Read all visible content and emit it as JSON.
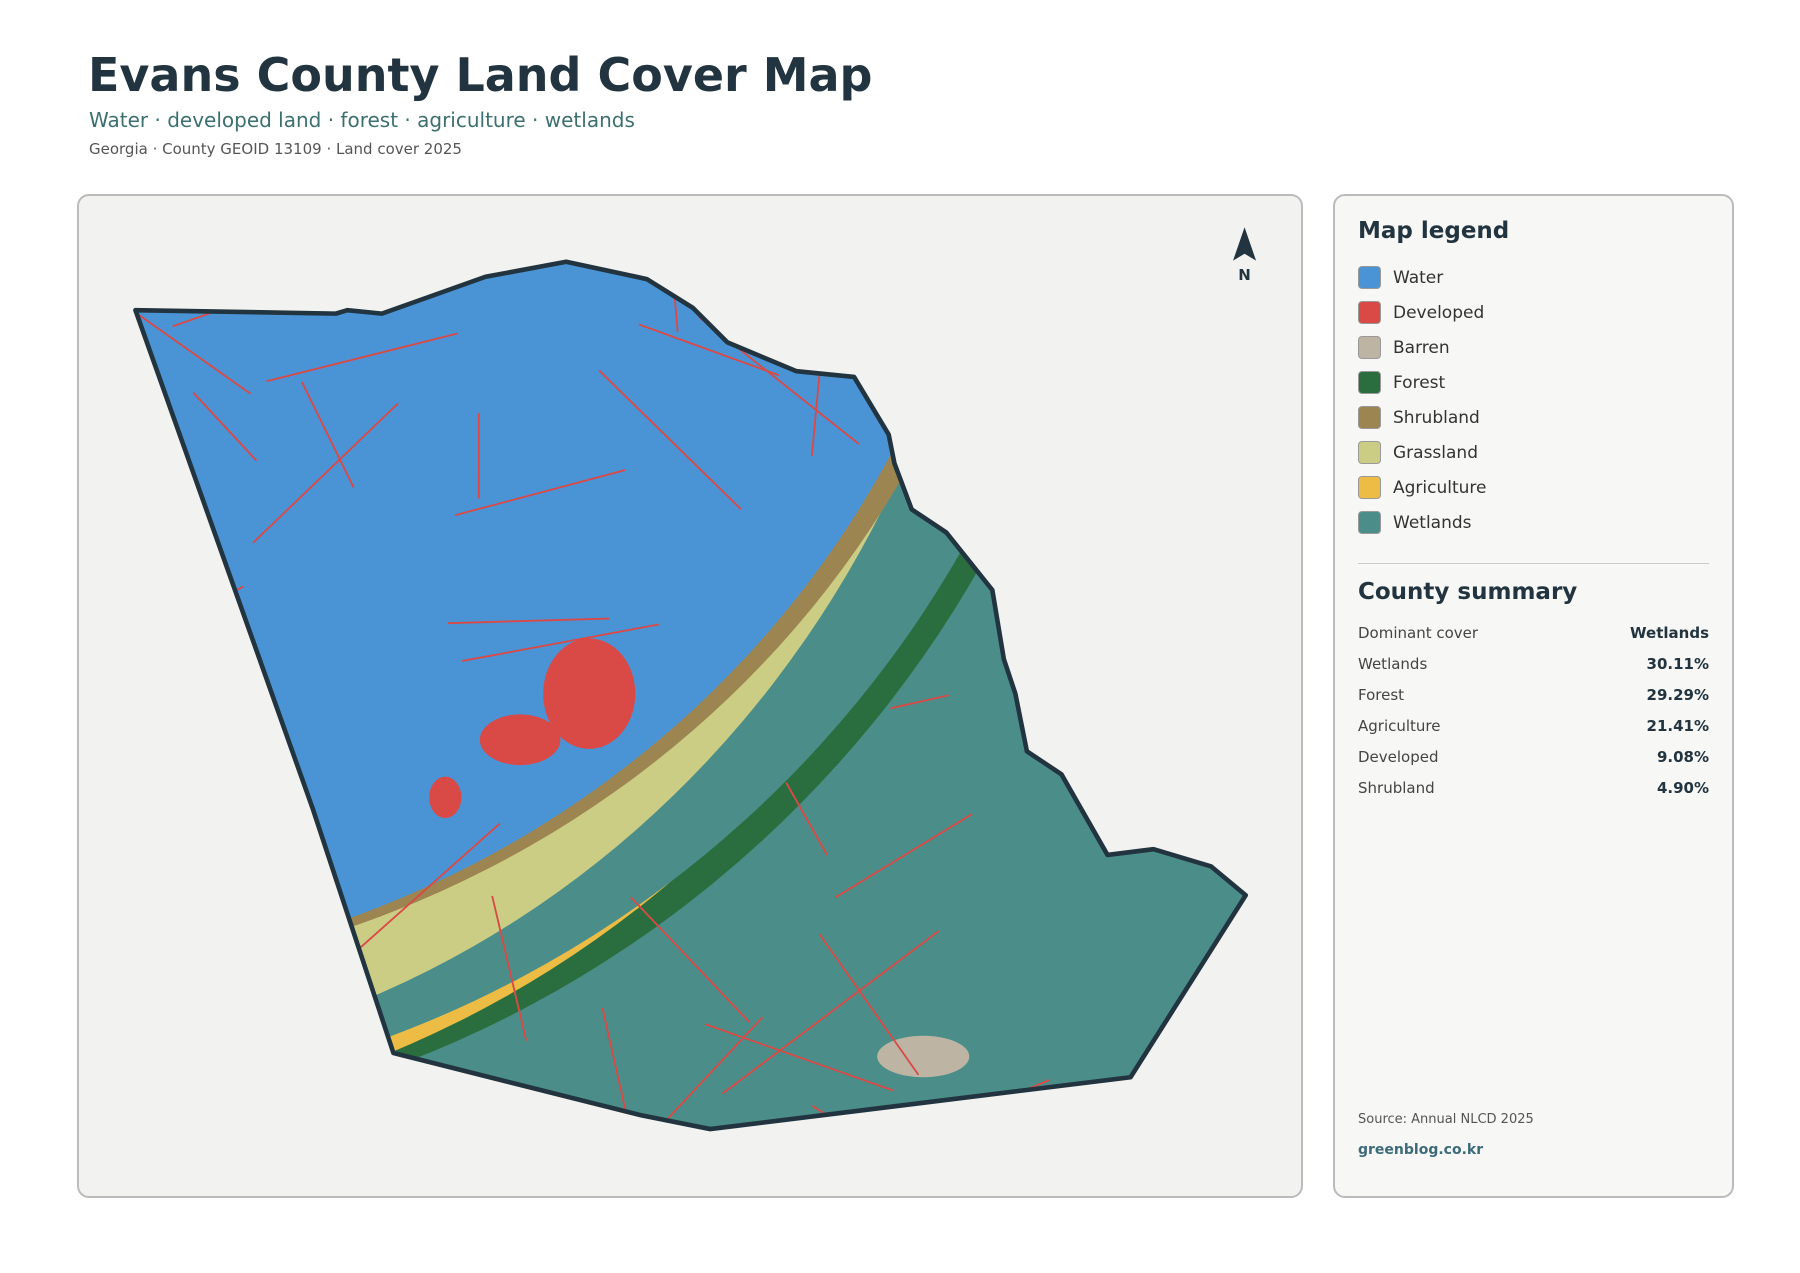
{
  "header": {
    "title": "Evans County Land Cover Map",
    "subtitle": "Water · developed land · forest · agriculture · wetlands",
    "meta": "Georgia · County GEOID 13109 · Land cover 2025"
  },
  "map": {
    "north_label": "N"
  },
  "legend": {
    "title": "Map legend",
    "items": [
      {
        "name": "Water",
        "color": "#4a94d6"
      },
      {
        "name": "Developed",
        "color": "#d94a47"
      },
      {
        "name": "Barren",
        "color": "#bdb4a3"
      },
      {
        "name": "Forest",
        "color": "#2a6e40"
      },
      {
        "name": "Shrubland",
        "color": "#9c8550"
      },
      {
        "name": "Grassland",
        "color": "#cbcd85"
      },
      {
        "name": "Agriculture",
        "color": "#ecbc45"
      },
      {
        "name": "Wetlands",
        "color": "#4b8e89"
      }
    ]
  },
  "summary": {
    "title": "County summary",
    "rows": [
      [
        "Dominant cover",
        "Wetlands"
      ],
      [
        "Wetlands",
        "30.11%"
      ],
      [
        "Forest",
        "29.29%"
      ],
      [
        "Agriculture",
        "21.41%"
      ],
      [
        "Developed",
        "9.08%"
      ],
      [
        "Shrubland",
        "4.90%"
      ]
    ]
  },
  "footer": {
    "source": "Source: Annual NLCD 2025",
    "site": "greenblog.co.kr"
  }
}
